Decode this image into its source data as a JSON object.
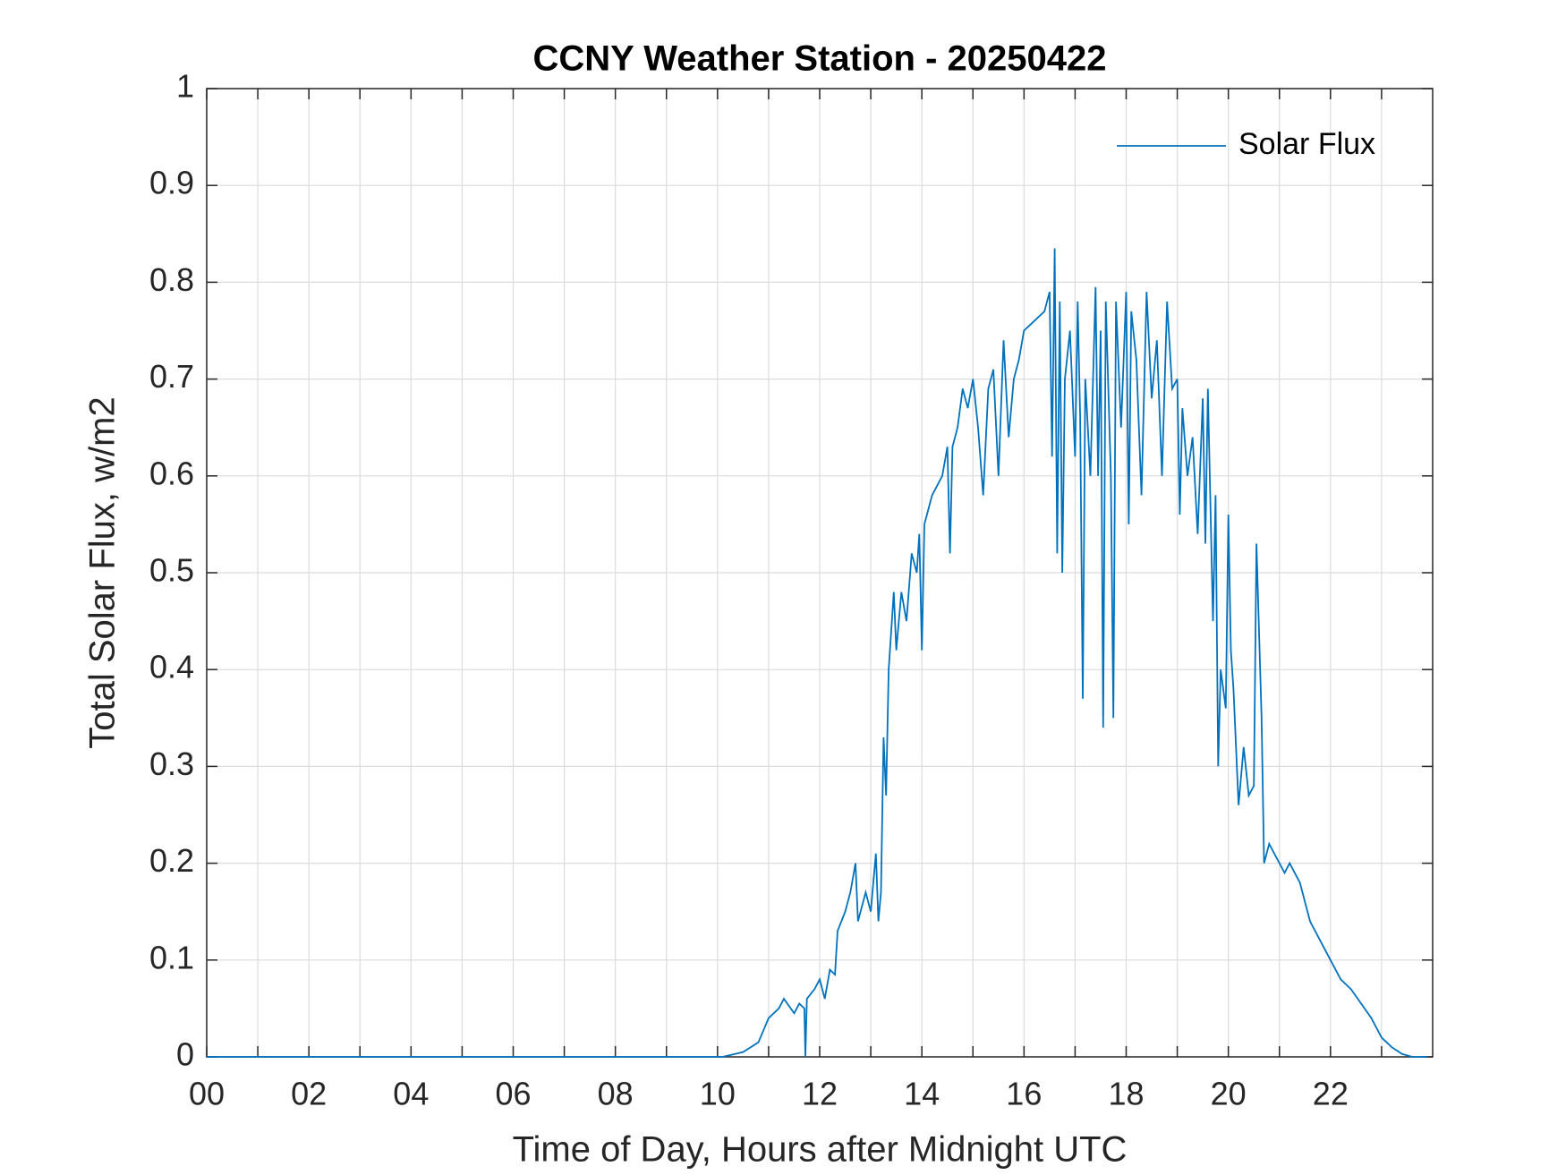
{
  "chart_data": {
    "type": "line",
    "title": "CCNY Weather Station - 20250422",
    "x_label": "Time of Day, Hours after Midnight UTC",
    "y_label": "Total Solar Flux, w/m2",
    "xlim": [
      0,
      24
    ],
    "ylim": [
      0,
      1
    ],
    "xticks": [
      {
        "value": 0,
        "label": "00"
      },
      {
        "value": 2,
        "label": "02"
      },
      {
        "value": 4,
        "label": "04"
      },
      {
        "value": 6,
        "label": "06"
      },
      {
        "value": 8,
        "label": "08"
      },
      10,
      12,
      14,
      16,
      18,
      20,
      22
    ],
    "minor_xticks": [
      1,
      3,
      5,
      7,
      9,
      11,
      13,
      15,
      17,
      19,
      21,
      23
    ],
    "yticks": [
      0,
      0.1,
      0.2,
      0.3,
      0.4,
      0.5,
      0.6,
      0.7,
      0.8,
      0.9,
      1
    ],
    "grid": true,
    "legend": "upper right",
    "x": [
      0,
      10.1,
      10.5,
      10.8,
      11.0,
      11.2,
      11.3,
      11.5,
      11.6,
      11.7,
      11.72,
      11.75,
      11.9,
      12.0,
      12.1,
      12.2,
      12.3,
      12.35,
      12.5,
      12.6,
      12.7,
      12.75,
      12.9,
      13.0,
      13.1,
      13.15,
      13.2,
      13.25,
      13.3,
      13.35,
      13.45,
      13.5,
      13.6,
      13.7,
      13.8,
      13.9,
      13.95,
      14.0,
      14.05,
      14.2,
      14.4,
      14.5,
      14.55,
      14.6,
      14.7,
      14.8,
      14.9,
      15.0,
      15.1,
      15.2,
      15.3,
      15.4,
      15.5,
      15.6,
      15.7,
      15.8,
      15.9,
      16.0,
      16.2,
      16.4,
      16.5,
      16.55,
      16.6,
      16.65,
      16.7,
      16.75,
      16.8,
      16.9,
      17.0,
      17.05,
      17.1,
      17.15,
      17.2,
      17.3,
      17.4,
      17.45,
      17.5,
      17.55,
      17.6,
      17.7,
      17.75,
      17.8,
      17.9,
      18.0,
      18.05,
      18.1,
      18.2,
      18.3,
      18.4,
      18.5,
      18.6,
      18.7,
      18.8,
      18.9,
      19.0,
      19.05,
      19.1,
      19.2,
      19.3,
      19.4,
      19.5,
      19.55,
      19.6,
      19.7,
      19.75,
      19.8,
      19.85,
      19.95,
      20.0,
      20.05,
      20.1,
      20.2,
      20.3,
      20.4,
      20.5,
      20.55,
      20.65,
      20.7,
      20.8,
      20.9,
      21.0,
      21.1,
      21.2,
      21.3,
      21.4,
      21.5,
      21.6,
      21.8,
      22.0,
      22.2,
      22.4,
      22.6,
      22.8,
      23.0,
      23.2,
      23.4,
      23.6,
      23.9
    ],
    "series": [
      {
        "name": "Solar Flux",
        "color": "#0072bd",
        "values": [
          0,
          0,
          0.005,
          0.015,
          0.04,
          0.05,
          0.06,
          0.045,
          0.055,
          0.05,
          0,
          0.06,
          0.07,
          0.08,
          0.06,
          0.09,
          0.085,
          0.13,
          0.15,
          0.17,
          0.2,
          0.14,
          0.17,
          0.15,
          0.21,
          0.14,
          0.17,
          0.33,
          0.27,
          0.4,
          0.48,
          0.42,
          0.48,
          0.45,
          0.52,
          0.5,
          0.54,
          0.42,
          0.55,
          0.58,
          0.6,
          0.63,
          0.52,
          0.63,
          0.65,
          0.69,
          0.67,
          0.7,
          0.65,
          0.58,
          0.69,
          0.71,
          0.6,
          0.74,
          0.64,
          0.7,
          0.72,
          0.75,
          0.76,
          0.77,
          0.79,
          0.62,
          0.835,
          0.52,
          0.78,
          0.5,
          0.7,
          0.75,
          0.62,
          0.78,
          0.66,
          0.37,
          0.7,
          0.6,
          0.795,
          0.6,
          0.75,
          0.34,
          0.78,
          0.6,
          0.35,
          0.78,
          0.65,
          0.79,
          0.55,
          0.77,
          0.72,
          0.58,
          0.79,
          0.68,
          0.74,
          0.6,
          0.78,
          0.69,
          0.7,
          0.56,
          0.67,
          0.6,
          0.64,
          0.54,
          0.68,
          0.53,
          0.69,
          0.45,
          0.58,
          0.3,
          0.4,
          0.36,
          0.56,
          0.42,
          0.38,
          0.26,
          0.32,
          0.27,
          0.28,
          0.53,
          0.35,
          0.2,
          0.22,
          0.21,
          0.2,
          0.19,
          0.2,
          0.19,
          0.18,
          0.16,
          0.14,
          0.12,
          0.1,
          0.08,
          0.07,
          0.055,
          0.04,
          0.02,
          0.01,
          0.003,
          0,
          0
        ]
      }
    ]
  }
}
